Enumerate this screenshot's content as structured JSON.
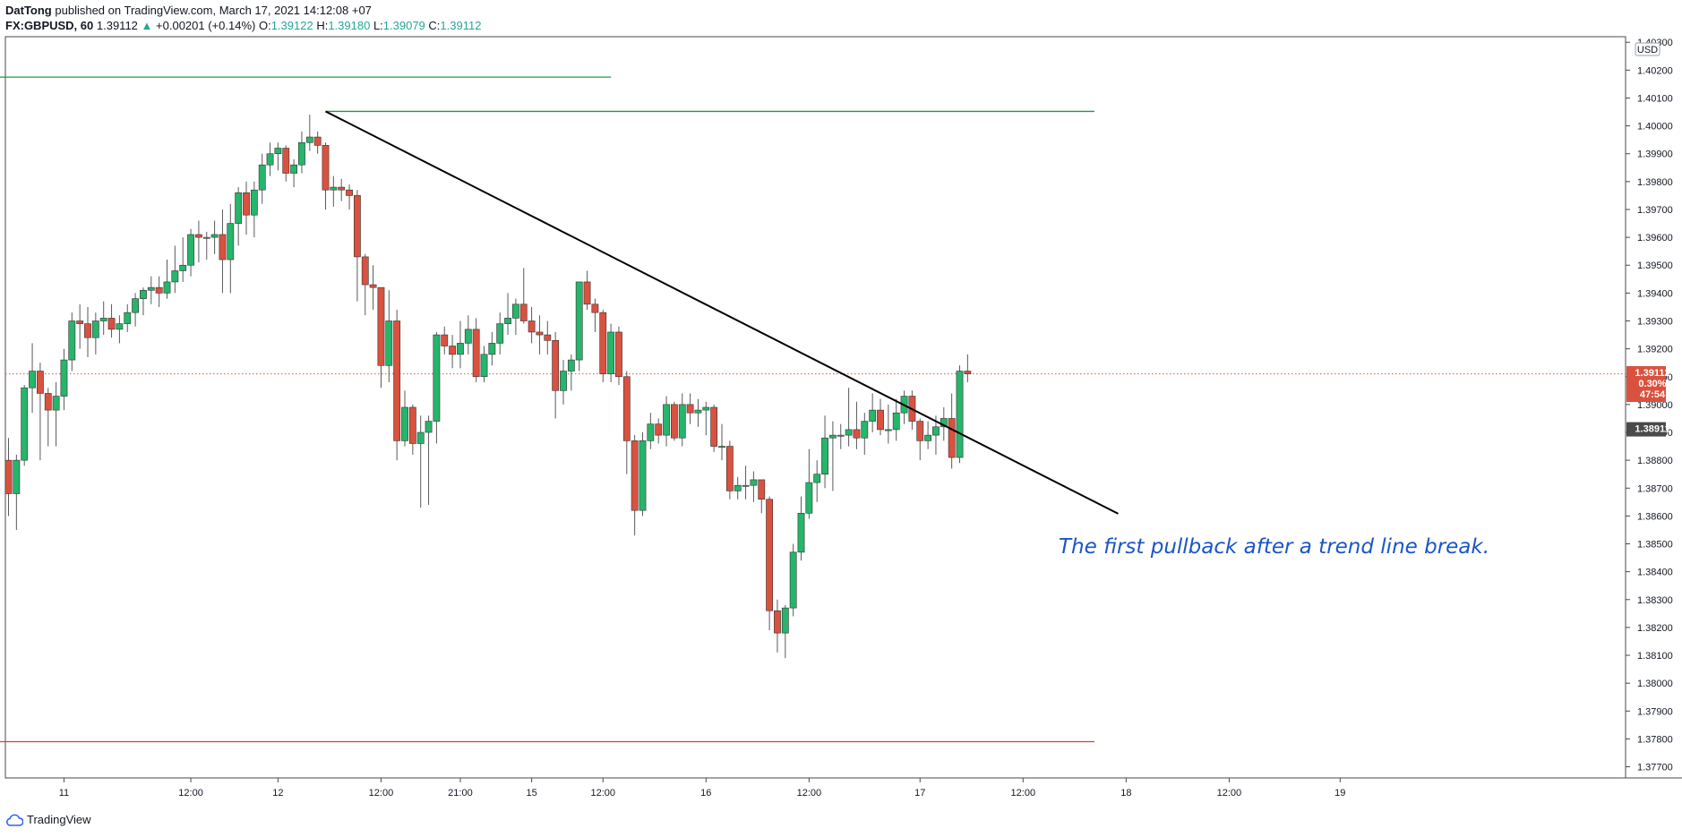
{
  "header": {
    "author": "DatTong",
    "published_text": "published on TradingView.com, March 17, 2021 14:12:08 +07",
    "symbol": "FX:GBPUSD, 60",
    "last": "1.39112",
    "change_arrow": "▲",
    "change": "+0.00201 (+0.14%)",
    "o_label": "O:",
    "o_value": "1.39122",
    "h_label": "H:",
    "h_value": "1.39180",
    "l_label": "L:",
    "l_value": "1.39079",
    "c_label": "C:",
    "c_value": "1.39112"
  },
  "footer": {
    "brand": "TradingView"
  },
  "annotation": "The first pullback after a trend line break.",
  "colors": {
    "up": "#26b56a",
    "down": "#d9523f",
    "wick": "#5a5a5a",
    "resistance": "#1b9e3a",
    "support": "#e53935",
    "trend": "#000000",
    "text": "#1a55c8"
  },
  "chart_data": {
    "type": "candlestick",
    "currency": "USD",
    "y_range": [
      1.3766,
      1.4032
    ],
    "y_ticks": [
      "1.40300",
      "1.40200",
      "1.40100",
      "1.40000",
      "1.39900",
      "1.39800",
      "1.39700",
      "1.39600",
      "1.39500",
      "1.39400",
      "1.39300",
      "1.39200",
      "1.39100",
      "1.39000",
      "1.38900",
      "1.38800",
      "1.38700",
      "1.38600",
      "1.38500",
      "1.38400",
      "1.38300",
      "1.38200",
      "1.38100",
      "1.38000",
      "1.37900",
      "1.37800",
      "1.37700"
    ],
    "x_ticks": [
      {
        "bar": 7,
        "label": "11"
      },
      {
        "bar": 23,
        "label": "12:00"
      },
      {
        "bar": 34,
        "label": "12"
      },
      {
        "bar": 47,
        "label": "12:00"
      },
      {
        "bar": 57,
        "label": "21:00"
      },
      {
        "bar": 66,
        "label": "15"
      },
      {
        "bar": 75,
        "label": "12:00"
      },
      {
        "bar": 88,
        "label": "16"
      },
      {
        "bar": 101,
        "label": "12:00"
      },
      {
        "bar": 115,
        "label": "17"
      },
      {
        "bar": 128,
        "label": "12:00"
      },
      {
        "bar": 141,
        "label": "18"
      },
      {
        "bar": 154,
        "label": "12:00"
      },
      {
        "bar": 168,
        "label": "19"
      }
    ],
    "candles": [
      [
        1.388,
        1.3888,
        1.386,
        1.3868
      ],
      [
        1.3868,
        1.3882,
        1.3855,
        1.388
      ],
      [
        1.388,
        1.3907,
        1.3878,
        1.3906
      ],
      [
        1.3906,
        1.3922,
        1.3897,
        1.3912
      ],
      [
        1.3912,
        1.3915,
        1.388,
        1.3904
      ],
      [
        1.3904,
        1.3906,
        1.3885,
        1.3898
      ],
      [
        1.3898,
        1.3908,
        1.3885,
        1.3903
      ],
      [
        1.3903,
        1.392,
        1.3898,
        1.3916
      ],
      [
        1.3916,
        1.3933,
        1.3912,
        1.393
      ],
      [
        1.393,
        1.3936,
        1.392,
        1.3929
      ],
      [
        1.3929,
        1.3935,
        1.3917,
        1.3924
      ],
      [
        1.3924,
        1.3933,
        1.3918,
        1.393
      ],
      [
        1.393,
        1.3937,
        1.3925,
        1.3931
      ],
      [
        1.3931,
        1.3936,
        1.3924,
        1.3927
      ],
      [
        1.3927,
        1.3932,
        1.3922,
        1.3929
      ],
      [
        1.3929,
        1.3936,
        1.3926,
        1.3933
      ],
      [
        1.3933,
        1.394,
        1.3928,
        1.3938
      ],
      [
        1.3938,
        1.3942,
        1.3932,
        1.3941
      ],
      [
        1.3941,
        1.3946,
        1.3936,
        1.3942
      ],
      [
        1.3942,
        1.3946,
        1.3935,
        1.394
      ],
      [
        1.394,
        1.3952,
        1.3938,
        1.3944
      ],
      [
        1.3944,
        1.3957,
        1.394,
        1.3948
      ],
      [
        1.3948,
        1.396,
        1.3944,
        1.395
      ],
      [
        1.395,
        1.3963,
        1.3946,
        1.3961
      ],
      [
        1.3961,
        1.3966,
        1.3951,
        1.396
      ],
      [
        1.396,
        1.3962,
        1.3952,
        1.396
      ],
      [
        1.396,
        1.3966,
        1.3954,
        1.3961
      ],
      [
        1.3961,
        1.397,
        1.394,
        1.3952
      ],
      [
        1.3952,
        1.3972,
        1.394,
        1.3965
      ],
      [
        1.3965,
        1.3978,
        1.3957,
        1.3976
      ],
      [
        1.3976,
        1.398,
        1.3961,
        1.3968
      ],
      [
        1.3968,
        1.398,
        1.396,
        1.3977
      ],
      [
        1.3977,
        1.399,
        1.3972,
        1.3986
      ],
      [
        1.3986,
        1.3994,
        1.3982,
        1.399
      ],
      [
        1.399,
        1.3994,
        1.3984,
        1.3992
      ],
      [
        1.3992,
        1.3993,
        1.398,
        1.3983
      ],
      [
        1.3983,
        1.3988,
        1.3978,
        1.3986
      ],
      [
        1.3986,
        1.3998,
        1.3983,
        1.3994
      ],
      [
        1.3994,
        1.4004,
        1.3991,
        1.3996
      ],
      [
        1.3996,
        1.3998,
        1.399,
        1.3993
      ],
      [
        1.3993,
        1.3994,
        1.397,
        1.3977
      ],
      [
        1.3977,
        1.3982,
        1.3971,
        1.3978
      ],
      [
        1.3978,
        1.3981,
        1.3973,
        1.3977
      ],
      [
        1.3977,
        1.3979,
        1.397,
        1.3975
      ],
      [
        1.3975,
        1.3977,
        1.3937,
        1.3953
      ],
      [
        1.3953,
        1.3954,
        1.3932,
        1.3943
      ],
      [
        1.3943,
        1.395,
        1.3934,
        1.3942
      ],
      [
        1.3942,
        1.3942,
        1.3906,
        1.3914
      ],
      [
        1.3914,
        1.3941,
        1.3908,
        1.393
      ],
      [
        1.393,
        1.3934,
        1.388,
        1.3887
      ],
      [
        1.3887,
        1.3905,
        1.3885,
        1.3899
      ],
      [
        1.3899,
        1.39,
        1.3882,
        1.3886
      ],
      [
        1.3886,
        1.3896,
        1.3863,
        1.389
      ],
      [
        1.389,
        1.3896,
        1.3864,
        1.3894
      ],
      [
        1.3894,
        1.3926,
        1.3886,
        1.3925
      ],
      [
        1.3925,
        1.3928,
        1.3918,
        1.3921
      ],
      [
        1.3921,
        1.3925,
        1.3913,
        1.3918
      ],
      [
        1.3918,
        1.393,
        1.3913,
        1.3922
      ],
      [
        1.3922,
        1.3932,
        1.3918,
        1.3927
      ],
      [
        1.3927,
        1.3931,
        1.3908,
        1.391
      ],
      [
        1.391,
        1.3921,
        1.3908,
        1.3918
      ],
      [
        1.3918,
        1.3926,
        1.3914,
        1.3922
      ],
      [
        1.3922,
        1.3933,
        1.3918,
        1.3929
      ],
      [
        1.3929,
        1.394,
        1.3925,
        1.3931
      ],
      [
        1.3931,
        1.3938,
        1.3925,
        1.3936
      ],
      [
        1.3936,
        1.3949,
        1.3929,
        1.393
      ],
      [
        1.393,
        1.3935,
        1.3922,
        1.3926
      ],
      [
        1.3926,
        1.3932,
        1.3918,
        1.3925
      ],
      [
        1.3925,
        1.393,
        1.3918,
        1.3923
      ],
      [
        1.3923,
        1.3926,
        1.3895,
        1.3905
      ],
      [
        1.3905,
        1.3916,
        1.39,
        1.3912
      ],
      [
        1.3912,
        1.3918,
        1.3905,
        1.3916
      ],
      [
        1.3916,
        1.3944,
        1.3912,
        1.3944
      ],
      [
        1.3944,
        1.3948,
        1.3934,
        1.3936
      ],
      [
        1.3936,
        1.3938,
        1.3926,
        1.3933
      ],
      [
        1.3933,
        1.3934,
        1.3908,
        1.3911
      ],
      [
        1.3911,
        1.3929,
        1.3908,
        1.3926
      ],
      [
        1.3926,
        1.3928,
        1.3907,
        1.391
      ],
      [
        1.391,
        1.3912,
        1.3875,
        1.3887
      ],
      [
        1.3887,
        1.3889,
        1.3853,
        1.3862
      ],
      [
        1.3862,
        1.389,
        1.386,
        1.3887
      ],
      [
        1.3887,
        1.3897,
        1.3884,
        1.3893
      ],
      [
        1.3893,
        1.3895,
        1.3886,
        1.3889
      ],
      [
        1.3889,
        1.3903,
        1.3885,
        1.39
      ],
      [
        1.39,
        1.3901,
        1.3887,
        1.3888
      ],
      [
        1.3888,
        1.3904,
        1.3885,
        1.39
      ],
      [
        1.39,
        1.3904,
        1.3893,
        1.3897
      ],
      [
        1.3897,
        1.3902,
        1.3892,
        1.3898
      ],
      [
        1.3898,
        1.3901,
        1.3889,
        1.3899
      ],
      [
        1.3899,
        1.39,
        1.3883,
        1.3885
      ],
      [
        1.3885,
        1.3893,
        1.388,
        1.3885
      ],
      [
        1.3885,
        1.3887,
        1.3866,
        1.3869
      ],
      [
        1.3869,
        1.3874,
        1.3866,
        1.3871
      ],
      [
        1.3871,
        1.3878,
        1.3866,
        1.3871
      ],
      [
        1.3871,
        1.3876,
        1.3865,
        1.3873
      ],
      [
        1.3873,
        1.3873,
        1.3861,
        1.3866
      ],
      [
        1.3866,
        1.3867,
        1.3819,
        1.3826
      ],
      [
        1.3826,
        1.383,
        1.3811,
        1.3818
      ],
      [
        1.3818,
        1.3828,
        1.3809,
        1.3827
      ],
      [
        1.3827,
        1.385,
        1.3824,
        1.3847
      ],
      [
        1.3847,
        1.3867,
        1.3844,
        1.3861
      ],
      [
        1.3861,
        1.3884,
        1.3859,
        1.3872
      ],
      [
        1.3872,
        1.388,
        1.3865,
        1.3875
      ],
      [
        1.3875,
        1.3896,
        1.387,
        1.3888
      ],
      [
        1.3888,
        1.3894,
        1.3869,
        1.3889
      ],
      [
        1.3889,
        1.3893,
        1.3884,
        1.3889
      ],
      [
        1.3889,
        1.3906,
        1.3885,
        1.3891
      ],
      [
        1.3891,
        1.3901,
        1.3884,
        1.3888
      ],
      [
        1.3888,
        1.3897,
        1.3882,
        1.3894
      ],
      [
        1.3894,
        1.3904,
        1.389,
        1.3898
      ],
      [
        1.3898,
        1.3902,
        1.3889,
        1.3891
      ],
      [
        1.3891,
        1.39,
        1.3886,
        1.3891
      ],
      [
        1.3891,
        1.3902,
        1.3887,
        1.3897
      ],
      [
        1.3897,
        1.3905,
        1.3893,
        1.3903
      ],
      [
        1.3903,
        1.3905,
        1.3891,
        1.3894
      ],
      [
        1.3894,
        1.3895,
        1.388,
        1.3887
      ],
      [
        1.3887,
        1.3894,
        1.3884,
        1.3889
      ],
      [
        1.3889,
        1.3896,
        1.3882,
        1.3892
      ],
      [
        1.3892,
        1.3899,
        1.3887,
        1.3895
      ],
      [
        1.3895,
        1.3904,
        1.3877,
        1.3881
      ],
      [
        1.3881,
        1.3914,
        1.3879,
        1.3912
      ],
      [
        1.3912,
        1.3918,
        1.3908,
        1.3911
      ]
    ],
    "levels": [
      {
        "price": 1.40175,
        "x_from_bar": -3,
        "x_to_bar": 76,
        "color": "resistance"
      },
      {
        "price": 1.40052,
        "x_from_bar": 40,
        "x_to_bar": 137,
        "color": "resistance"
      },
      {
        "price": 1.3779,
        "x_from_bar": -3,
        "x_to_bar": 137,
        "color": "support"
      }
    ],
    "trendline": {
      "from_bar": 40,
      "from_price": 1.40052,
      "to_bar": 140,
      "to_price": 1.38608
    },
    "price_labels": [
      {
        "price": 1.39112,
        "lines": [
          "1.39112",
          "0.30%",
          "47:54"
        ],
        "color": "#d9523f"
      },
      {
        "price": 1.38911,
        "lines": [
          "1.38911"
        ],
        "color": "#4a4a4a"
      }
    ]
  }
}
